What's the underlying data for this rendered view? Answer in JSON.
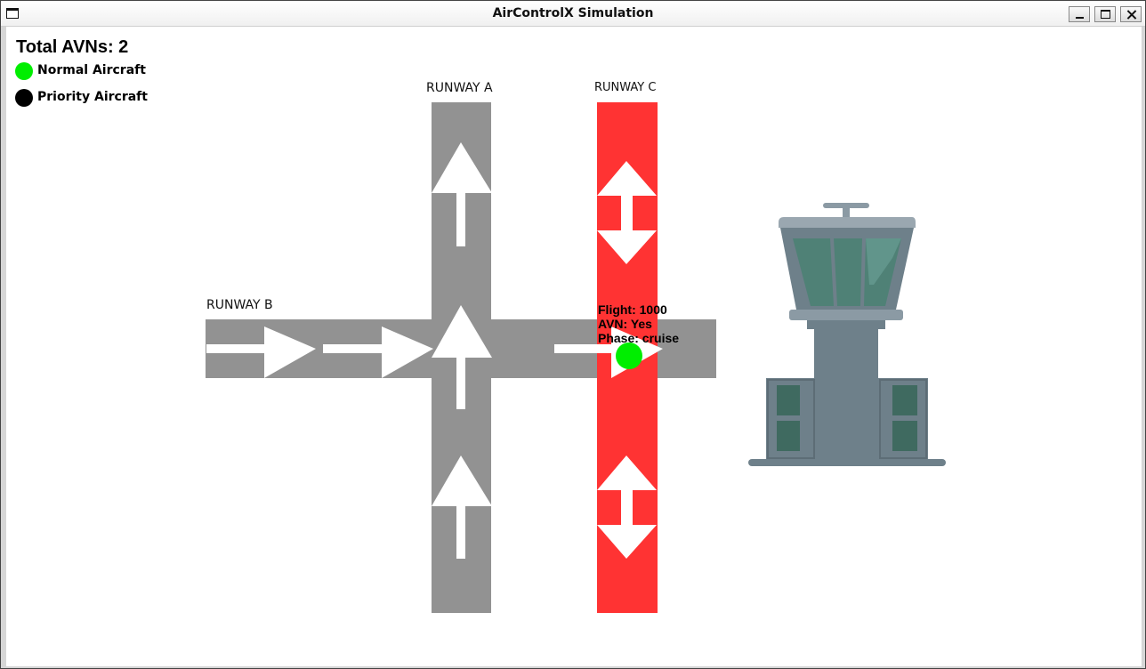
{
  "window": {
    "title": "AirControlX Simulation"
  },
  "hud": {
    "total_avns": "Total AVNs: 2"
  },
  "legend": {
    "items": [
      {
        "label": "Normal Aircraft",
        "color": "#00ee00"
      },
      {
        "label": "Priority Aircraft",
        "color": "#000000"
      }
    ]
  },
  "runways": {
    "a_label": "RUNWAY A",
    "b_label": "RUNWAY B",
    "c_label": "RUNWAY C",
    "color_normal": "#929292",
    "color_active": "#ff3333"
  },
  "aircraft": {
    "flight": "Flight: 1000",
    "avn": "AVN: Yes",
    "phase": "Phase: cruise",
    "type": "normal",
    "color": "#00ee00"
  },
  "icons": [
    "window-menu-icon",
    "minimize-icon",
    "maximize-icon",
    "close-icon",
    "control-tower-icon",
    "arrow-icon"
  ]
}
